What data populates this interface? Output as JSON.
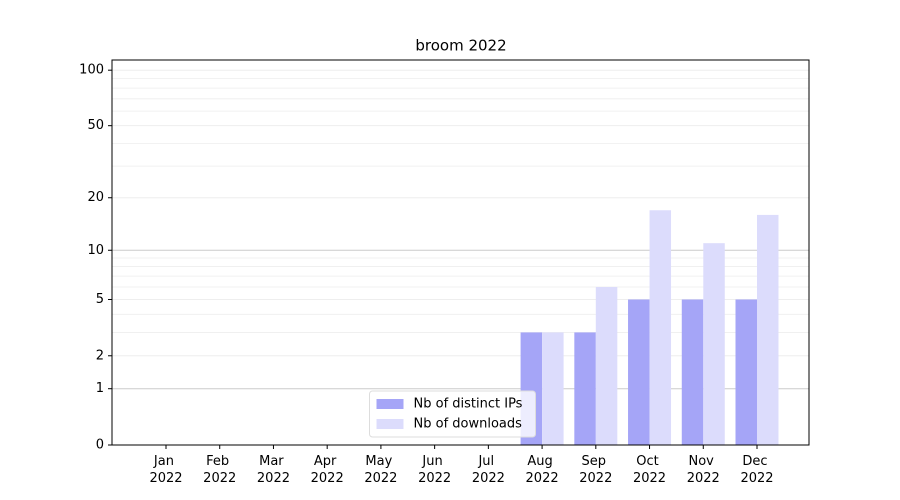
{
  "chart_data": {
    "type": "bar",
    "title": "broom 2022",
    "scale": "log1p",
    "categories": [
      "Jan 2022",
      "Feb 2022",
      "Mar 2022",
      "Apr 2022",
      "May 2022",
      "Jun 2022",
      "Jul 2022",
      "Aug 2022",
      "Sep 2022",
      "Oct 2022",
      "Nov 2022",
      "Dec 2022"
    ],
    "series": [
      {
        "name": "Nb of distinct IPs",
        "color": "#a5a5f7",
        "values": [
          0,
          0,
          0,
          0,
          0,
          0,
          0,
          3,
          3,
          5,
          5,
          5
        ]
      },
      {
        "name": "Nb of downloads",
        "color": "#dcdcfc",
        "values": [
          0,
          0,
          0,
          0,
          0,
          0,
          0,
          3,
          6,
          17,
          11,
          16
        ]
      }
    ],
    "ylim": [
      0,
      113.5
    ],
    "yticks": [
      0,
      1,
      2,
      5,
      10,
      20,
      50,
      100
    ],
    "minor_yticks": [
      3,
      4,
      6,
      7,
      8,
      9,
      30,
      40,
      60,
      70,
      80,
      90
    ],
    "grid": true,
    "legend": "lower center"
  }
}
